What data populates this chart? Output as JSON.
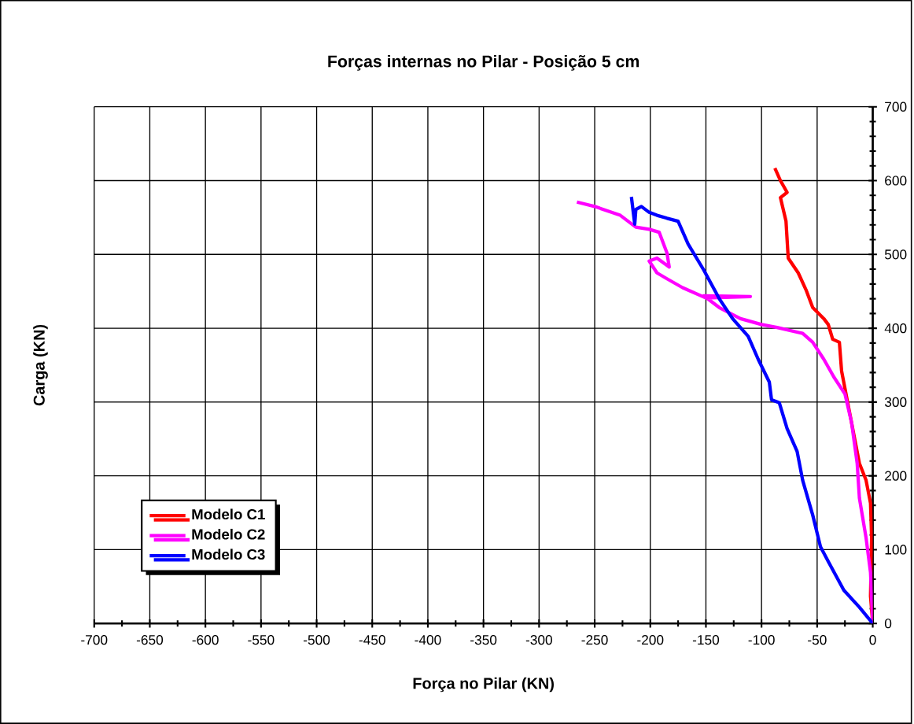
{
  "chart_data": {
    "type": "line",
    "title": "Forças internas no Pilar - Posição 5 cm",
    "xlabel": "Força no Pilar (KN)",
    "ylabel": "Carga (KN)",
    "xlim": [
      -700,
      0
    ],
    "ylim": [
      0,
      700
    ],
    "xticks": [
      -700,
      -650,
      -600,
      -550,
      -500,
      -450,
      -400,
      -350,
      -300,
      -250,
      -200,
      -150,
      -100,
      -50,
      0
    ],
    "yticks": [
      0,
      100,
      200,
      300,
      400,
      500,
      600,
      700
    ],
    "grid": true,
    "legend": "bottom left",
    "marker": "none",
    "line_style": "solid",
    "series": [
      {
        "name": "Modelo C1",
        "color": "#ff0000",
        "x": [
          0,
          -2,
          -1,
          -2,
          -6,
          -12,
          -17,
          -23,
          -28,
          -30,
          -36,
          -40,
          -44,
          -54,
          -60,
          -67,
          -76,
          -78,
          -83,
          -77,
          -83,
          -88
        ],
        "values": [
          0,
          37,
          116,
          163,
          194,
          217,
          256,
          303,
          342,
          381,
          385,
          405,
          413,
          428,
          452,
          475,
          495,
          545,
          577,
          584,
          600,
          617
        ]
      },
      {
        "name": "Modelo C2",
        "color": "#ff00ff",
        "x": [
          0,
          -2,
          -6,
          -12,
          -14,
          -19,
          -25,
          -35,
          -44,
          -54,
          -63,
          -86,
          -100,
          -119,
          -138,
          -152,
          -110,
          -150,
          -171,
          -185,
          -194,
          -201,
          -194,
          -183,
          -185,
          -192,
          -201,
          -213,
          -227,
          -250,
          -266
        ],
        "values": [
          0,
          69,
          116,
          170,
          217,
          272,
          311,
          334,
          358,
          381,
          393,
          401,
          405,
          413,
          428,
          444,
          443,
          441,
          455,
          467,
          475,
          491,
          495,
          483,
          502,
          530,
          534,
          537,
          553,
          565,
          571
        ]
      },
      {
        "name": "Modelo C3",
        "color": "#0000ff",
        "x": [
          0,
          -12,
          -26,
          -40,
          -47,
          -54,
          -63,
          -68,
          -77,
          -84,
          -91,
          -93,
          -103,
          -112,
          -126,
          -138,
          -152,
          -166,
          -175,
          -185,
          -194,
          -201,
          -208,
          -213,
          -214,
          -217
        ],
        "values": [
          0,
          22,
          45,
          84,
          104,
          147,
          194,
          233,
          264,
          299,
          303,
          327,
          358,
          389,
          413,
          440,
          479,
          514,
          545,
          549,
          553,
          557,
          565,
          561,
          541,
          578
        ]
      }
    ]
  }
}
